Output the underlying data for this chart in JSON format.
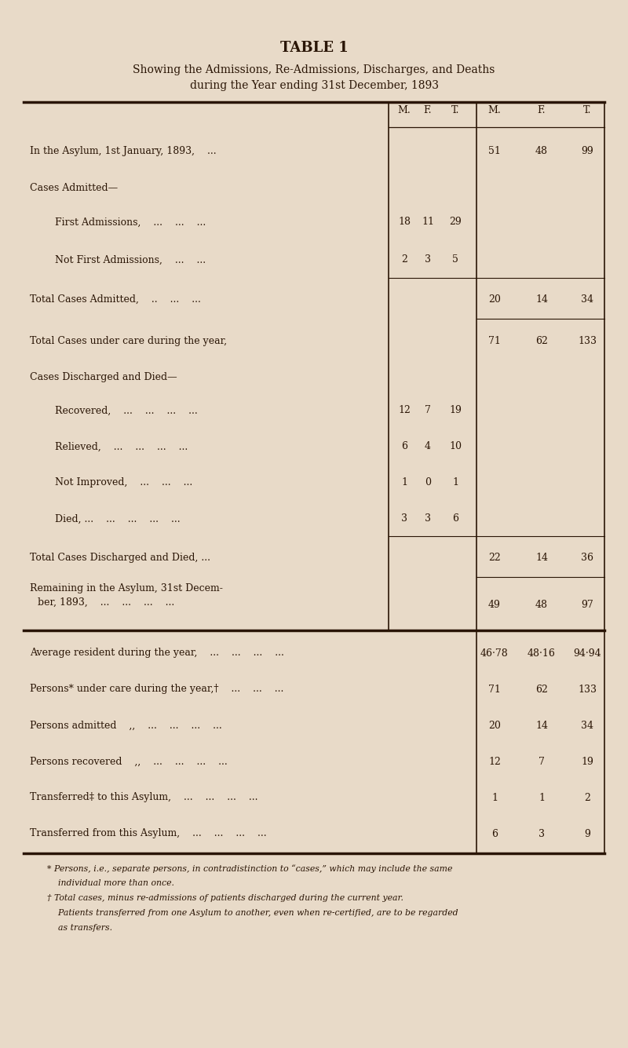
{
  "title": "TABLE 1",
  "subtitle_line1": "Showing the Admissions, Re-Admissions, Discharges, and Deaths",
  "subtitle_line2": "during the Year ending 31st December, 1893",
  "bg_color": "#e8dac8",
  "text_color": "#2a1505",
  "col_headers": [
    "M.",
    "F.",
    "T.",
    "M.",
    "F.",
    "T."
  ],
  "rows": [
    {
      "label": "In the Asylum, 1st January, 1893,    ...",
      "indent": 0,
      "left_vals": [
        "",
        "",
        ""
      ],
      "right_vals": [
        "51",
        "48",
        "99"
      ],
      "bottom_rule": false,
      "right_rule_only": true
    },
    {
      "label": "Cases Admitted—",
      "indent": 0,
      "left_vals": [
        "",
        "",
        ""
      ],
      "right_vals": [
        "",
        "",
        ""
      ],
      "bottom_rule": false,
      "right_rule_only": false
    },
    {
      "label": "First Admissions,    ...    ...    ...",
      "indent": 1,
      "left_vals": [
        "18",
        "11",
        "29"
      ],
      "right_vals": [
        "",
        "",
        ""
      ],
      "bottom_rule": false,
      "right_rule_only": false
    },
    {
      "label": "Not First Admissions,    ...    ...",
      "indent": 1,
      "left_vals": [
        "2",
        "3",
        "5"
      ],
      "right_vals": [
        "",
        "",
        ""
      ],
      "bottom_rule": true,
      "right_rule_only": false
    },
    {
      "label": "Total Cases Admitted,    ..    ...    ...",
      "indent": 0,
      "left_vals": [
        "",
        "",
        ""
      ],
      "right_vals": [
        "20",
        "14",
        "34"
      ],
      "bottom_rule": true,
      "right_rule_only": false
    },
    {
      "label": "Total Cases under care during the year,",
      "indent": 0,
      "left_vals": [
        "",
        "",
        ""
      ],
      "right_vals": [
        "71",
        "62",
        "133"
      ],
      "bottom_rule": false,
      "right_rule_only": false
    },
    {
      "label": "Cases Discharged and Died—",
      "indent": 0,
      "left_vals": [
        "",
        "",
        ""
      ],
      "right_vals": [
        "",
        "",
        ""
      ],
      "bottom_rule": false,
      "right_rule_only": false
    },
    {
      "label": "Recovered,    ...    ...    ...    ...",
      "indent": 1,
      "left_vals": [
        "12",
        "7",
        "19"
      ],
      "right_vals": [
        "",
        "",
        ""
      ],
      "bottom_rule": false,
      "right_rule_only": false
    },
    {
      "label": "Relieved,    ...    ...    ...    ...",
      "indent": 1,
      "left_vals": [
        "6",
        "4",
        "10"
      ],
      "right_vals": [
        "",
        "",
        ""
      ],
      "bottom_rule": false,
      "right_rule_only": false
    },
    {
      "label": "Not Improved,    ...    ...    ...",
      "indent": 1,
      "left_vals": [
        "1",
        "0",
        "1"
      ],
      "right_vals": [
        "",
        "",
        ""
      ],
      "bottom_rule": false,
      "right_rule_only": false
    },
    {
      "label": "Died, ...    ...    ...    ...    ...",
      "indent": 1,
      "left_vals": [
        "3",
        "3",
        "6"
      ],
      "right_vals": [
        "",
        "",
        ""
      ],
      "bottom_rule": true,
      "right_rule_only": false
    },
    {
      "label": "Total Cases Discharged and Died, ...",
      "indent": 0,
      "left_vals": [
        "",
        "",
        ""
      ],
      "right_vals": [
        "22",
        "14",
        "36"
      ],
      "bottom_rule": true,
      "right_rule_only": false
    },
    {
      "label_lines": [
        "Remaining in the Asylum, 31st Decem-",
        "ber, 1893,    ...    ...    ...    ..."
      ],
      "indent": 0,
      "left_vals": [
        "",
        "",
        ""
      ],
      "right_vals": [
        "49",
        "48",
        "97"
      ],
      "bottom_rule": false,
      "right_rule_only": false
    }
  ],
  "lower_rows": [
    {
      "label": "Average resident during the year,    ...    ...    ...    ...",
      "vals": [
        "46·78",
        "48·16",
        "94·94"
      ]
    },
    {
      "label": "Persons* under care during the year,†    ...    ...    ...",
      "vals": [
        "71",
        "62",
        "133"
      ]
    },
    {
      "label": "Persons admitted    ,,    ...    ...    ...    ...",
      "vals": [
        "20",
        "14",
        "34"
      ]
    },
    {
      "label": "Persons recovered    ,,    ...    ...    ...    ...",
      "vals": [
        "12",
        "7",
        "19"
      ]
    },
    {
      "label": "Transferred‡ to this Asylum,    ...    ...    ...    ...",
      "vals": [
        "1",
        "1",
        "2"
      ]
    },
    {
      "label": "Transferred from this Asylum,    ...    ...    ...    ...",
      "vals": [
        "6",
        "3",
        "9"
      ]
    }
  ],
  "footnote_lines": [
    "* Persons, i.e., separate persons, in contradistinction to “cases,” which may include the same",
    "    individual more than once.",
    "† Total cases, minus re-admissions of patients discharged during the current year.",
    "    Patients transferred from one Asylum to another, even when re-certified, are to be regarded",
    "    as transfers."
  ]
}
